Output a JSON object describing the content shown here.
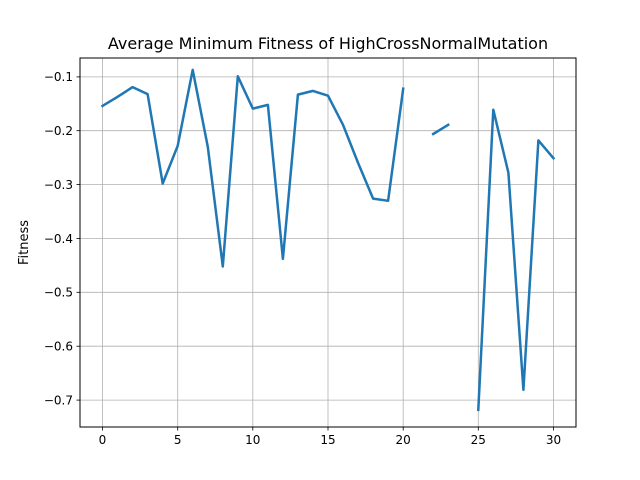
{
  "chart_data": {
    "type": "line",
    "title": "Average Minimum Fitness of HighCrossNormalMutation",
    "xlabel": "",
    "ylabel": "Fitness",
    "xlim": [
      -1.5,
      31.5
    ],
    "ylim": [
      -0.75,
      -0.065
    ],
    "x_ticks": [
      0,
      5,
      10,
      15,
      20,
      25,
      30
    ],
    "y_ticks": [
      -0.7,
      -0.6,
      -0.5,
      -0.4,
      -0.3,
      -0.2,
      -0.1
    ],
    "grid": true,
    "series": [
      {
        "color": "#1f77b4",
        "x": [
          0,
          1,
          2,
          3,
          4,
          5,
          6,
          7,
          8,
          9,
          10,
          11,
          12,
          13,
          14,
          15,
          16,
          17,
          18,
          19,
          20,
          21,
          22,
          23,
          24,
          25,
          26,
          27,
          28,
          29,
          30
        ],
        "y": [
          -0.154,
          -0.137,
          -0.119,
          -0.132,
          -0.298,
          -0.228,
          -0.087,
          -0.23,
          -0.452,
          -0.099,
          -0.159,
          -0.152,
          -0.438,
          -0.133,
          -0.126,
          -0.135,
          -0.189,
          -0.26,
          -0.326,
          -0.33,
          -0.122,
          null,
          -0.206,
          -0.189,
          null,
          -0.718,
          -0.161,
          -0.278,
          -0.681,
          -0.218,
          -0.251
        ]
      }
    ]
  }
}
